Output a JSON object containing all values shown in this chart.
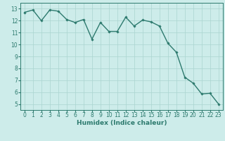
{
  "x": [
    0,
    1,
    2,
    3,
    4,
    5,
    6,
    7,
    8,
    9,
    10,
    11,
    12,
    13,
    14,
    15,
    16,
    17,
    18,
    19,
    20,
    21,
    22,
    23
  ],
  "y": [
    12.7,
    12.9,
    12.0,
    12.9,
    12.8,
    12.1,
    11.85,
    12.1,
    10.45,
    11.85,
    11.1,
    11.1,
    12.3,
    11.55,
    12.05,
    11.9,
    11.55,
    10.1,
    9.35,
    7.25,
    6.75,
    5.85,
    5.9,
    5.0
  ],
  "line_color": "#2d7a6e",
  "marker": "D",
  "marker_size": 1.8,
  "line_width": 1.0,
  "bg_color": "#cdecea",
  "grid_color": "#aad4d0",
  "xlabel": "Humidex (Indice chaleur)",
  "xlabel_fontsize": 6.5,
  "tick_fontsize": 5.5,
  "xlim": [
    -0.5,
    23.5
  ],
  "ylim": [
    4.5,
    13.5
  ],
  "yticks": [
    5,
    6,
    7,
    8,
    9,
    10,
    11,
    12,
    13
  ],
  "xticks": [
    0,
    1,
    2,
    3,
    4,
    5,
    6,
    7,
    8,
    9,
    10,
    11,
    12,
    13,
    14,
    15,
    16,
    17,
    18,
    19,
    20,
    21,
    22,
    23
  ]
}
